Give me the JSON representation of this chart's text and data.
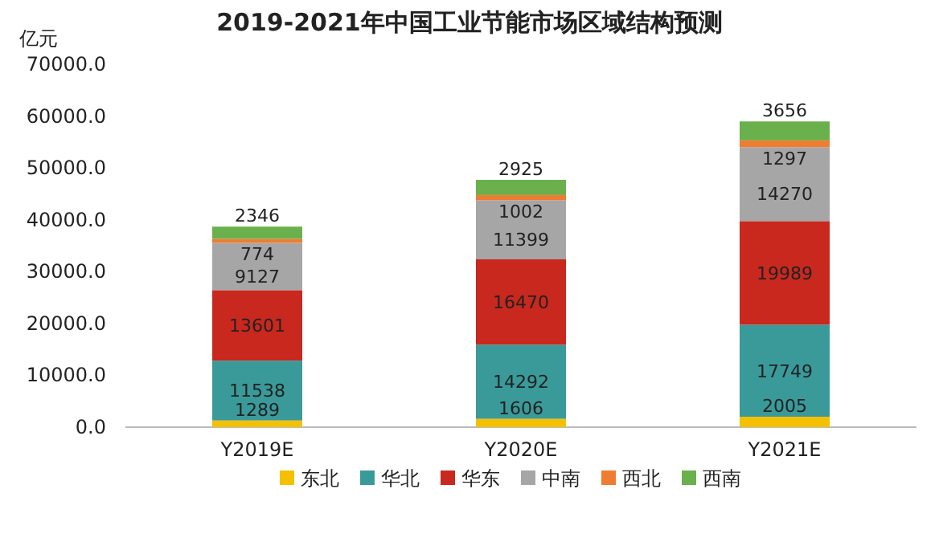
{
  "chart_data": {
    "type": "bar",
    "title": "2019-2021年中国工业节能市场区域结构预测",
    "ylabel": "亿元",
    "categories": [
      "Y2019E",
      "Y2020E",
      "Y2021E"
    ],
    "series": [
      {
        "name": "东北",
        "color": "#f5c000",
        "values": [
          1289,
          1606,
          2005
        ]
      },
      {
        "name": "华北",
        "color": "#3a9a9a",
        "values": [
          11538,
          14292,
          17749
        ]
      },
      {
        "name": "华东",
        "color": "#c8281e",
        "values": [
          13601,
          16470,
          19989
        ]
      },
      {
        "name": "中南",
        "color": "#a6a6a6",
        "values": [
          9127,
          11399,
          14270
        ]
      },
      {
        "name": "西北",
        "color": "#ee7d31",
        "values": [
          774,
          1002,
          1297
        ]
      },
      {
        "name": "西南",
        "color": "#6ab04c",
        "values": [
          2346,
          2925,
          3656
        ]
      }
    ],
    "stacked": true,
    "data_labels": true,
    "legend": "bottom",
    "ylim": [
      0,
      70000
    ],
    "yticks": [
      {
        "value": 0,
        "label": "0.0"
      },
      {
        "value": 10000,
        "label": "10000.0"
      },
      {
        "value": 20000,
        "label": "20000.0"
      },
      {
        "value": 30000,
        "label": "30000.0"
      },
      {
        "value": 40000,
        "label": "40000.0"
      },
      {
        "value": 50000,
        "label": "50000.0"
      },
      {
        "value": 60000,
        "label": "60000.0"
      },
      {
        "value": 70000,
        "label": "70000.0"
      }
    ]
  }
}
